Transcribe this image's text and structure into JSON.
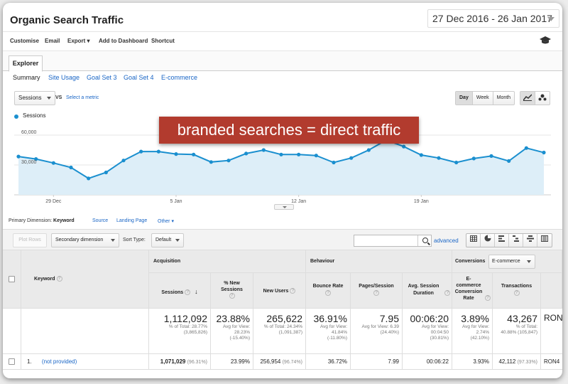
{
  "header": {
    "title": "Organic Search Traffic",
    "date_range": "27 Dec 2016 - 26 Jan 2017"
  },
  "toolbar": {
    "items": [
      "Customise",
      "Email",
      "Export ▾",
      "Add to Dashboard",
      "Shortcut"
    ]
  },
  "tabs": {
    "explorer": "Explorer"
  },
  "subtabs": [
    "Summary",
    "Site Usage",
    "Goal Set 3",
    "Goal Set 4",
    "E-commerce"
  ],
  "chart_controls": {
    "metric": "Sessions",
    "vs": "VS",
    "select_metric": "Select a metric",
    "granularity": [
      "Day",
      "Week",
      "Month"
    ],
    "selected_granularity": "Day"
  },
  "annotation": "branded searches = direct traffic",
  "chart_data": {
    "type": "area",
    "legend": [
      "Sessions"
    ],
    "y_ticks": [
      "60,000",
      "30,000"
    ],
    "x_ticks": [
      "29 Dec",
      "5 Jan",
      "12 Jan",
      "19 Jan"
    ],
    "ylim": [
      0,
      75000
    ],
    "color": "#1a8fcf",
    "values": [
      38500,
      36000,
      32000,
      27500,
      16500,
      22500,
      34500,
      43500,
      43500,
      41000,
      40500,
      33000,
      34500,
      41500,
      45000,
      40500,
      40500,
      39500,
      32500,
      37000,
      45000,
      55000,
      48500,
      40000,
      37000,
      32500,
      36500,
      39000,
      34000,
      47000,
      42500
    ]
  },
  "primary_dimension": {
    "label": "Primary Dimension:",
    "selected": "Keyword",
    "options": [
      "Source",
      "Landing Page",
      "Other ▾"
    ]
  },
  "controls": {
    "plot_rows": "Plot Rows",
    "secondary_dimension": "Secondary dimension",
    "sort_type_label": "Sort Type:",
    "sort_type_value": "Default",
    "advanced": "advanced"
  },
  "table": {
    "keyword_header": "Keyword",
    "groups": {
      "acquisition": "Acquisition",
      "behaviour": "Behaviour",
      "conversions": "Conversions",
      "conversions_select": "E-commerce"
    },
    "columns": [
      "Sessions",
      "% New Sessions",
      "New Users",
      "Bounce Rate",
      "Pages/Session",
      "Avg. Session Duration",
      "E-commerce Conversion Rate",
      "Transactions"
    ],
    "totals": [
      {
        "value": "1,112,092",
        "sub1": "% of Total: 28.77%",
        "sub2": "(3,865,826)"
      },
      {
        "value": "23.88%",
        "sub1": "Avg for View:",
        "sub2": "28.23%",
        "sub3": "(-15.40%)"
      },
      {
        "value": "265,622",
        "sub1": "% of Total: 24.34%",
        "sub2": "(1,091,387)"
      },
      {
        "value": "36.91%",
        "sub1": "Avg for View:",
        "sub2": "41.84%",
        "sub3": "(-11.80%)"
      },
      {
        "value": "7.95",
        "sub1": "Avg for View: 6.39",
        "sub2": "(24.40%)"
      },
      {
        "value": "00:06:20",
        "sub1": "Avg for View: 00:04:50",
        "sub2": "(30.81%)"
      },
      {
        "value": "3.89%",
        "sub1": "Avg for View:",
        "sub2": "2.74%",
        "sub3": "(42.10%)"
      },
      {
        "value": "43,267",
        "sub1": "% of Total:",
        "sub2": "40.88% (105,847)"
      },
      {
        "value": "RON"
      }
    ],
    "row1": {
      "index": "1.",
      "keyword": "(not provided)",
      "sessions": "1,071,029",
      "sessions_pct": "(96.31%)",
      "pct_new": "23.99%",
      "new_users": "256,954",
      "new_users_pct": "(96.74%)",
      "bounce": "36.72%",
      "pages": "7.99",
      "duration": "00:06:22",
      "conv": "3.93%",
      "transactions": "42,112",
      "transactions_pct": "(97.33%)",
      "revenue": "RON4"
    }
  }
}
